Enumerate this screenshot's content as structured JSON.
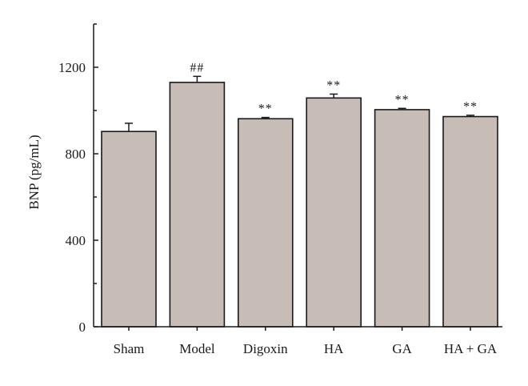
{
  "chart_data": {
    "type": "bar",
    "title": "",
    "xlabel": "",
    "ylabel": "BNP (pg/mL)",
    "categories": [
      "Sham",
      "Model",
      "Digoxin",
      "HA",
      "GA",
      "HA + GA"
    ],
    "values": [
      903,
      1130,
      962,
      1058,
      1004,
      972
    ],
    "error": [
      38,
      28,
      6,
      18,
      6,
      6
    ],
    "annotations": [
      "",
      "##",
      "**",
      "**",
      "**",
      "**"
    ],
    "yticks": [
      0,
      400,
      800,
      1200
    ],
    "ylim": [
      0,
      1400
    ],
    "grid": false,
    "bar_color": "#c8bdb6",
    "edge_color": "#1a1a1a"
  }
}
